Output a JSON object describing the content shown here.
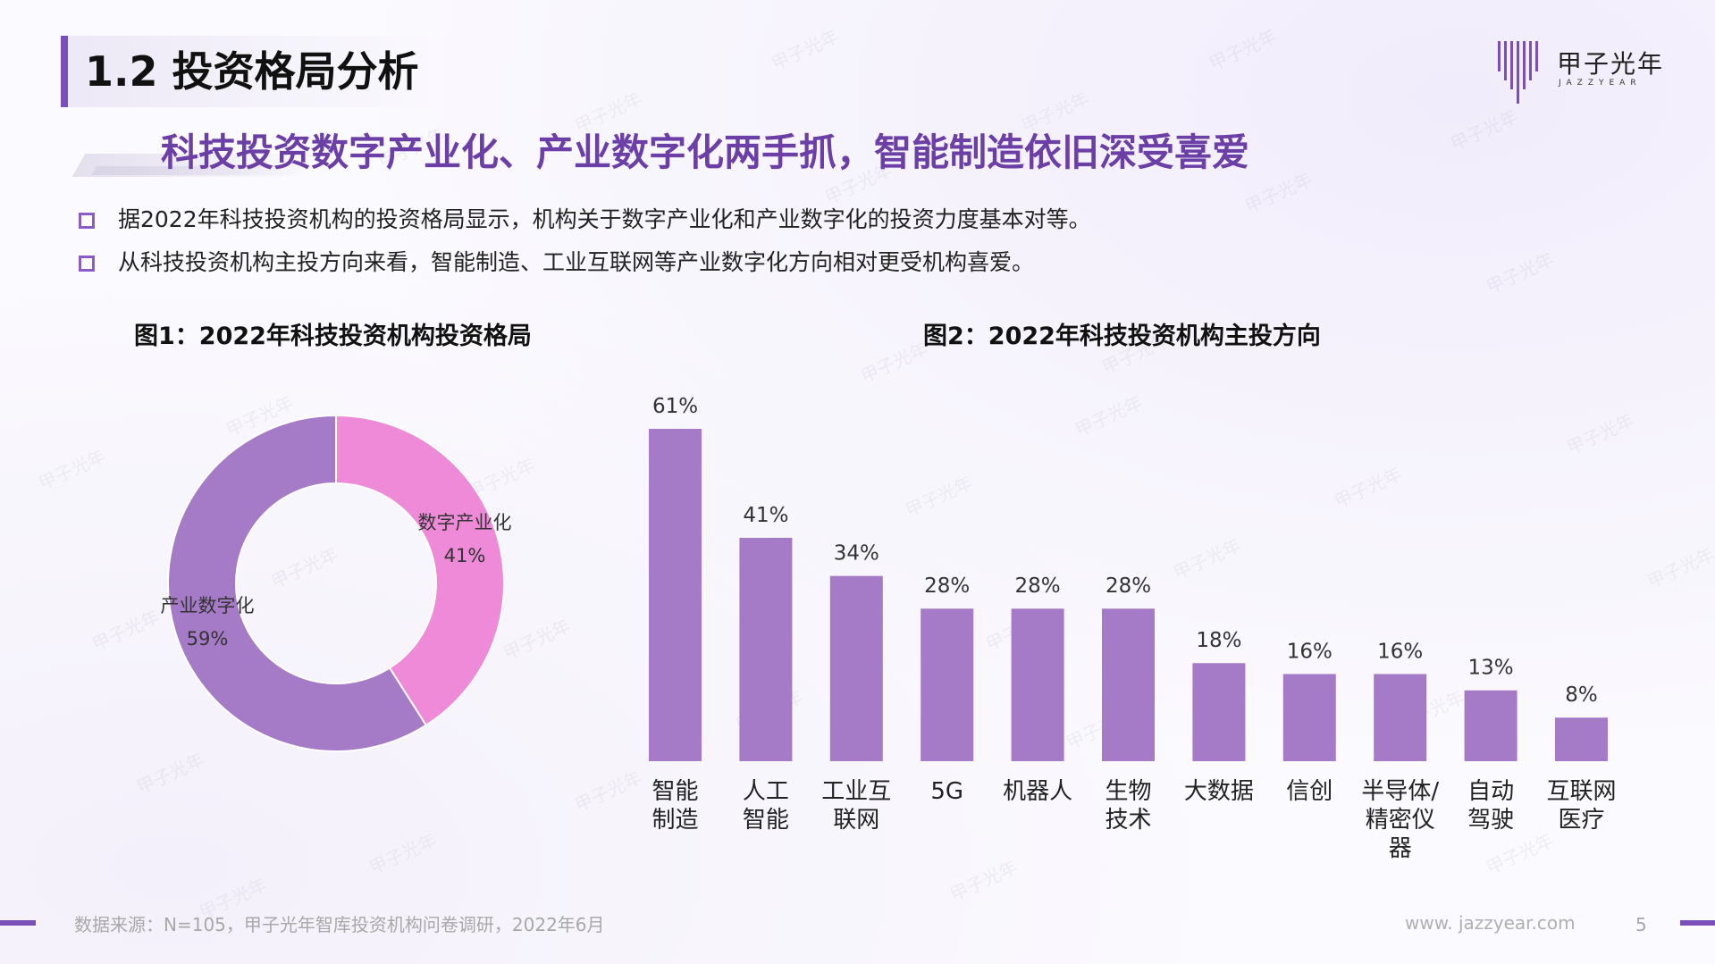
{
  "header": {
    "title": "1.2 投资格局分析",
    "subtitle": "科技投资数字产业化、产业数字化两手抓，智能制造依旧深受喜爱"
  },
  "logo": {
    "name_cn": "甲子光年",
    "name_en": "JAZZYEAR",
    "icon": "jazzyear-logo-icon",
    "color": "#7a4fb8"
  },
  "bullets": [
    "据2022年科技投资机构的投资格局显示，机构关于数字产业化和产业数字化的投资力度基本对等。",
    "从科技投资机构主投方向来看，智能制造、工业互联网等产业数字化方向相对更受机构喜爱。"
  ],
  "watermark_text": "甲子光年",
  "chart_data": [
    {
      "type": "pie",
      "title": "图1：2022年科技投资机构投资格局",
      "donut": true,
      "slices": [
        {
          "label": "数字产业化",
          "value": 41,
          "value_label": "41%",
          "color": "#ee8ad8"
        },
        {
          "label": "产业数字化",
          "value": 59,
          "value_label": "59%",
          "color": "#a57bc7"
        }
      ]
    },
    {
      "type": "bar",
      "title": "图2：2022年科技投资机构主投方向",
      "categories": [
        [
          "智能",
          "制造"
        ],
        [
          "人工",
          "智能"
        ],
        [
          "工业互",
          "联网"
        ],
        [
          "5G"
        ],
        [
          "机器人"
        ],
        [
          "生物",
          "技术"
        ],
        [
          "大数据"
        ],
        [
          "信创"
        ],
        [
          "半导体/",
          "精密仪",
          "器"
        ],
        [
          "自动",
          "驾驶"
        ],
        [
          "互联网",
          "医疗"
        ]
      ],
      "values": [
        61,
        41,
        34,
        28,
        28,
        28,
        18,
        16,
        16,
        13,
        8
      ],
      "value_labels": [
        "61%",
        "41%",
        "34%",
        "28%",
        "28%",
        "28%",
        "18%",
        "16%",
        "16%",
        "13%",
        "8%"
      ],
      "unit": "%",
      "ylim": [
        0,
        61
      ],
      "color": "#a57bc7",
      "grid": false
    }
  ],
  "footer": {
    "source": "数据来源：N=105，甲子光年智库投资机构问卷调研，2022年6月",
    "url": "www. jazzyear.com",
    "page": "5"
  }
}
